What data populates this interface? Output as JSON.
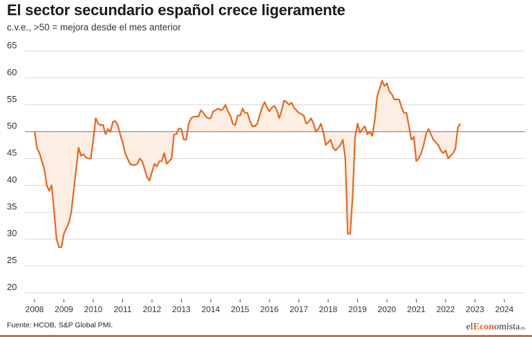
{
  "header": {
    "title": "El sector secundario español crece ligeramente",
    "subtitle": "c.v.e., >50 = mejora desde el mes anterior"
  },
  "footer": {
    "source": "Fuente: HCOB, S&P Global PMI.",
    "logo": {
      "prefix": "el",
      "accent": "Econ",
      "suffix": "omista",
      "tld": ".es"
    }
  },
  "colors": {
    "line": "#e8661c",
    "fill": "#fdeee4",
    "grid": "#d9d9d9",
    "baseline": "#888888",
    "text": "#222222"
  },
  "chart_data": {
    "type": "area",
    "title": "El sector secundario español crece ligeramente",
    "subtitle": "c.v.e., >50 = mejora desde el mes anterior",
    "xlabel": "",
    "ylabel": "",
    "ylim": [
      20,
      65
    ],
    "yticks": [
      20,
      25,
      30,
      35,
      40,
      45,
      50,
      55,
      60,
      65
    ],
    "xticks": [
      "2008",
      "2009",
      "2010",
      "2011",
      "2012",
      "2013",
      "2014",
      "2015",
      "2016",
      "2017",
      "2018",
      "2019",
      "2020",
      "2021",
      "2022",
      "2023",
      "2024"
    ],
    "baseline": 50,
    "grid": true,
    "legend": "none",
    "series": [
      {
        "name": "",
        "start": "2008-01",
        "frequency": "monthly",
        "values": [
          50.0,
          47.0,
          46.0,
          44.5,
          43.0,
          40.0,
          39.0,
          40.0,
          35.0,
          30.0,
          28.5,
          28.5,
          31.0,
          32.0,
          33.0,
          35.0,
          39.0,
          43.0,
          47.0,
          45.5,
          45.8,
          45.2,
          45.0,
          45.0,
          48.5,
          52.5,
          51.5,
          51.2,
          51.3,
          49.5,
          50.5,
          50.0,
          51.8,
          52.0,
          51.2,
          49.5,
          48.0,
          46.0,
          45.0,
          44.0,
          43.8,
          43.8,
          44.0,
          45.0,
          44.5,
          43.0,
          41.5,
          40.9,
          42.5,
          44.0,
          43.5,
          44.5,
          44.5,
          46.0,
          44.0,
          44.5,
          45.0,
          49.5,
          49.5,
          50.6,
          50.5,
          48.5,
          48.5,
          51.5,
          52.5,
          52.8,
          52.8,
          52.8,
          54.0,
          53.5,
          52.8,
          52.5,
          52.5,
          53.8,
          54.0,
          54.3,
          54.0,
          54.2,
          55.0,
          53.8,
          53.0,
          51.5,
          51.2,
          53.0,
          53.0,
          54.3,
          53.5,
          53.5,
          52.0,
          51.0,
          51.0,
          51.5,
          53.0,
          54.5,
          55.5,
          54.5,
          53.8,
          54.5,
          54.8,
          54.0,
          52.5,
          54.0,
          55.8,
          55.5,
          55.0,
          55.4,
          54.5,
          54.0,
          53.5,
          53.3,
          53.0,
          51.5,
          51.8,
          52.5,
          51.5,
          50.0,
          50.5,
          51.5,
          50.0,
          47.5,
          48.0,
          48.5,
          47.0,
          46.5,
          47.0,
          47.5,
          48.5,
          45.0,
          31.0,
          31.0,
          38.0,
          49.0,
          51.5,
          49.8,
          50.5,
          51.0,
          49.5,
          50.0,
          49.2,
          52.0,
          56.5,
          58.0,
          59.5,
          58.5,
          59.0,
          57.5,
          57.0,
          56.0,
          56.0,
          56.0,
          54.5,
          53.5,
          53.5,
          51.0,
          48.5,
          49.0,
          44.5,
          45.0,
          46.0,
          47.5,
          49.5,
          50.5,
          49.5,
          48.5,
          48.0,
          47.5,
          46.5,
          46.0,
          46.5,
          45.0,
          45.5,
          46.0,
          46.8,
          50.8,
          51.5
        ]
      }
    ]
  }
}
